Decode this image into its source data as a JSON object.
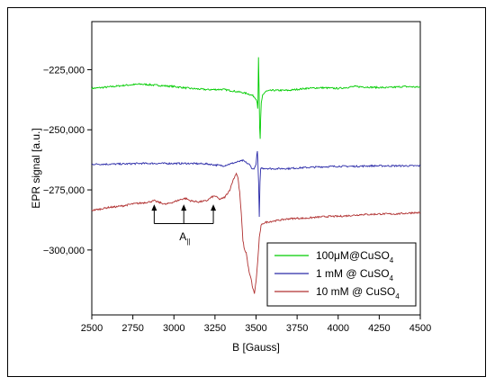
{
  "chart_data": {
    "type": "line",
    "xlabel": "B [Gauss]",
    "ylabel": "EPR signal [a.u.]",
    "xlim": [
      2500,
      4500
    ],
    "ylim": [
      -327000,
      -205000
    ],
    "x_ticks": [
      2500,
      2750,
      3000,
      3250,
      3500,
      3750,
      4000,
      4250,
      4500
    ],
    "y_ticks": [
      -300000,
      -275000,
      -250000,
      -225000
    ],
    "x_tick_labels": [
      "2500",
      "2750",
      "3000",
      "3250",
      "3500",
      "3750",
      "4000",
      "4250",
      "4500"
    ],
    "y_tick_labels": [
      "−300,000",
      "−275,000",
      "−250,000",
      "−225,000"
    ],
    "legend_position": "bottom-right",
    "series": [
      {
        "name_parts": [
          "100μM@CuSO",
          "4"
        ],
        "color": "#00cc00",
        "points": [
          [
            2500,
            -232800
          ],
          [
            2600,
            -232200
          ],
          [
            2700,
            -231500
          ],
          [
            2800,
            -231000
          ],
          [
            2900,
            -231500
          ],
          [
            3000,
            -232000
          ],
          [
            3100,
            -232800
          ],
          [
            3200,
            -233300
          ],
          [
            3300,
            -233200
          ],
          [
            3400,
            -234300
          ],
          [
            3450,
            -235000
          ],
          [
            3480,
            -235800
          ],
          [
            3500,
            -237000
          ],
          [
            3507,
            -238500
          ],
          [
            3510,
            -241000
          ],
          [
            3512,
            -238000
          ],
          [
            3515,
            -220000
          ],
          [
            3518,
            -232000
          ],
          [
            3522,
            -249000
          ],
          [
            3525,
            -254000
          ],
          [
            3528,
            -246000
          ],
          [
            3532,
            -239000
          ],
          [
            3540,
            -235500
          ],
          [
            3560,
            -234000
          ],
          [
            3600,
            -233600
          ],
          [
            3700,
            -233600
          ],
          [
            3800,
            -232800
          ],
          [
            3900,
            -232500
          ],
          [
            4000,
            -232800
          ],
          [
            4100,
            -232000
          ],
          [
            4200,
            -232300
          ],
          [
            4300,
            -232500
          ],
          [
            4400,
            -232000
          ],
          [
            4500,
            -232300
          ]
        ]
      },
      {
        "name_parts": [
          "1 mM @ CuSO",
          "4"
        ],
        "color": "#2a2aa8",
        "points": [
          [
            2500,
            -264300
          ],
          [
            2600,
            -264300
          ],
          [
            2700,
            -264200
          ],
          [
            2800,
            -264000
          ],
          [
            2900,
            -264000
          ],
          [
            3000,
            -264000
          ],
          [
            3100,
            -264000
          ],
          [
            3200,
            -264200
          ],
          [
            3300,
            -265000
          ],
          [
            3380,
            -263500
          ],
          [
            3420,
            -262800
          ],
          [
            3460,
            -264500
          ],
          [
            3480,
            -266500
          ],
          [
            3495,
            -265500
          ],
          [
            3500,
            -264000
          ],
          [
            3505,
            -260500
          ],
          [
            3508,
            -259000
          ],
          [
            3512,
            -265000
          ],
          [
            3516,
            -273000
          ],
          [
            3520,
            -286500
          ],
          [
            3524,
            -272000
          ],
          [
            3528,
            -266000
          ],
          [
            3540,
            -266000
          ],
          [
            3560,
            -266000
          ],
          [
            3600,
            -266200
          ],
          [
            3700,
            -266100
          ],
          [
            3800,
            -265700
          ],
          [
            3900,
            -265400
          ],
          [
            4000,
            -265200
          ],
          [
            4100,
            -265200
          ],
          [
            4200,
            -265000
          ],
          [
            4300,
            -265000
          ],
          [
            4400,
            -265000
          ],
          [
            4500,
            -265000
          ]
        ]
      },
      {
        "name_parts": [
          "10 mM @ CuSO",
          "4"
        ],
        "color": "#b03030",
        "points": [
          [
            2500,
            -283500
          ],
          [
            2550,
            -283000
          ],
          [
            2600,
            -282300
          ],
          [
            2650,
            -282000
          ],
          [
            2700,
            -281500
          ],
          [
            2750,
            -280800
          ],
          [
            2800,
            -280500
          ],
          [
            2850,
            -280000
          ],
          [
            2880,
            -279500
          ],
          [
            2900,
            -280000
          ],
          [
            2950,
            -281000
          ],
          [
            3000,
            -280000
          ],
          [
            3040,
            -279000
          ],
          [
            3070,
            -278500
          ],
          [
            3100,
            -279500
          ],
          [
            3150,
            -280000
          ],
          [
            3200,
            -279500
          ],
          [
            3230,
            -278000
          ],
          [
            3250,
            -277500
          ],
          [
            3280,
            -279000
          ],
          [
            3310,
            -278000
          ],
          [
            3340,
            -275000
          ],
          [
            3360,
            -271000
          ],
          [
            3380,
            -268000
          ],
          [
            3390,
            -270000
          ],
          [
            3400,
            -276000
          ],
          [
            3410,
            -285000
          ],
          [
            3420,
            -296000
          ],
          [
            3430,
            -300000
          ],
          [
            3440,
            -301000
          ],
          [
            3450,
            -306000
          ],
          [
            3460,
            -310000
          ],
          [
            3470,
            -312000
          ],
          [
            3480,
            -316000
          ],
          [
            3490,
            -318000
          ],
          [
            3500,
            -313000
          ],
          [
            3510,
            -305000
          ],
          [
            3520,
            -295000
          ],
          [
            3530,
            -290000
          ],
          [
            3540,
            -289000
          ],
          [
            3560,
            -288500
          ],
          [
            3600,
            -288000
          ],
          [
            3650,
            -287500
          ],
          [
            3700,
            -287000
          ],
          [
            3750,
            -286800
          ],
          [
            3800,
            -286800
          ],
          [
            3850,
            -286500
          ],
          [
            3900,
            -286200
          ],
          [
            3950,
            -286000
          ],
          [
            4000,
            -286000
          ],
          [
            4050,
            -285800
          ],
          [
            4100,
            -285500
          ],
          [
            4150,
            -285200
          ],
          [
            4200,
            -285200
          ],
          [
            4250,
            -285000
          ],
          [
            4300,
            -285000
          ],
          [
            4350,
            -285000
          ],
          [
            4400,
            -284800
          ],
          [
            4450,
            -284500
          ],
          [
            4500,
            -284500
          ]
        ]
      }
    ],
    "annotation": {
      "label_main": "A",
      "label_sub": "||",
      "arrow_x": [
        2880,
        3060,
        3240
      ],
      "arrow_tip_y": -281000,
      "bracket_y": -289000,
      "label_y": -296000
    }
  }
}
